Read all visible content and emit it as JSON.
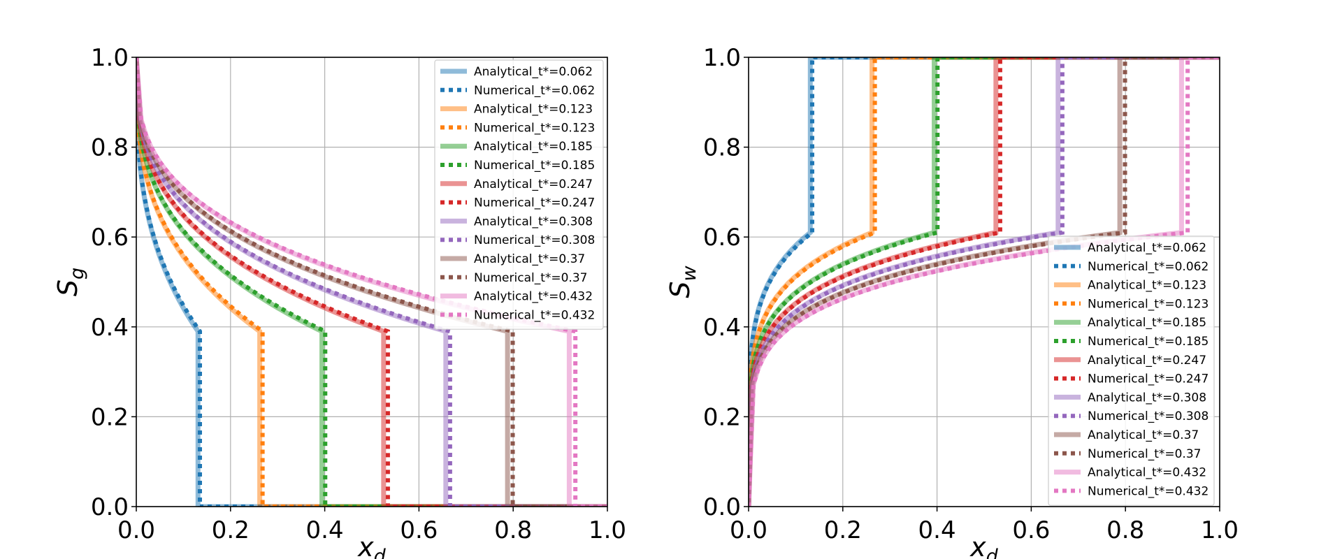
{
  "chart_data": [
    {
      "type": "line",
      "title": "",
      "xlabel_main": "x",
      "xlabel_sub": "d",
      "ylabel_main": "S",
      "ylabel_sub": "g",
      "xlim": [
        0,
        1
      ],
      "ylim": [
        0,
        1
      ],
      "xticks": [
        "0.0",
        "0.2",
        "0.4",
        "0.6",
        "0.8",
        "1.0"
      ],
      "yticks": [
        "0.0",
        "0.2",
        "0.4",
        "0.6",
        "0.8",
        "1.0"
      ],
      "grid": true,
      "legend_position": "top-right",
      "front_height": 0.39,
      "series": [
        {
          "name": "Analytical_t*=0.062",
          "style": "solid",
          "color": "#1f77b4",
          "front": 0.131
        },
        {
          "name": "Numerical_t*=0.062",
          "style": "dotted",
          "color": "#1f77b4",
          "front": 0.135
        },
        {
          "name": "Analytical_t*=0.123",
          "style": "solid",
          "color": "#ff7f0e",
          "front": 0.262
        },
        {
          "name": "Numerical_t*=0.123",
          "style": "dotted",
          "color": "#ff7f0e",
          "front": 0.268
        },
        {
          "name": "Analytical_t*=0.185",
          "style": "solid",
          "color": "#2ca02c",
          "front": 0.394
        },
        {
          "name": "Numerical_t*=0.185",
          "style": "dotted",
          "color": "#2ca02c",
          "front": 0.401
        },
        {
          "name": "Analytical_t*=0.247",
          "style": "solid",
          "color": "#d62728",
          "front": 0.525
        },
        {
          "name": "Numerical_t*=0.247",
          "style": "dotted",
          "color": "#d62728",
          "front": 0.534
        },
        {
          "name": "Analytical_t*=0.308",
          "style": "solid",
          "color": "#9467bd",
          "front": 0.657
        },
        {
          "name": "Numerical_t*=0.308",
          "style": "dotted",
          "color": "#9467bd",
          "front": 0.666
        },
        {
          "name": "Analytical_t*=0.37",
          "style": "solid",
          "color": "#8c564b",
          "front": 0.788
        },
        {
          "name": "Numerical_t*=0.37",
          "style": "dotted",
          "color": "#8c564b",
          "front": 0.799
        },
        {
          "name": "Analytical_t*=0.432",
          "style": "solid",
          "color": "#e377c2",
          "front": 0.919
        },
        {
          "name": "Numerical_t*=0.432",
          "style": "dotted",
          "color": "#e377c2",
          "front": 0.932
        }
      ]
    },
    {
      "type": "line",
      "title": "",
      "xlabel_main": "x",
      "xlabel_sub": "d",
      "ylabel_main": "S",
      "ylabel_sub": "w",
      "xlim": [
        0,
        1
      ],
      "ylim": [
        0,
        1
      ],
      "xticks": [
        "0.0",
        "0.2",
        "0.4",
        "0.6",
        "0.8",
        "1.0"
      ],
      "yticks": [
        "0.0",
        "0.2",
        "0.4",
        "0.6",
        "0.8",
        "1.0"
      ],
      "grid": true,
      "legend_position": "lower-right",
      "front_height": 0.61,
      "series": [
        {
          "name": "Analytical_t*=0.062",
          "style": "solid",
          "color": "#1f77b4",
          "front": 0.131
        },
        {
          "name": "Numerical_t*=0.062",
          "style": "dotted",
          "color": "#1f77b4",
          "front": 0.135
        },
        {
          "name": "Analytical_t*=0.123",
          "style": "solid",
          "color": "#ff7f0e",
          "front": 0.262
        },
        {
          "name": "Numerical_t*=0.123",
          "style": "dotted",
          "color": "#ff7f0e",
          "front": 0.268
        },
        {
          "name": "Analytical_t*=0.185",
          "style": "solid",
          "color": "#2ca02c",
          "front": 0.394
        },
        {
          "name": "Numerical_t*=0.185",
          "style": "dotted",
          "color": "#2ca02c",
          "front": 0.401
        },
        {
          "name": "Analytical_t*=0.247",
          "style": "solid",
          "color": "#d62728",
          "front": 0.525
        },
        {
          "name": "Numerical_t*=0.247",
          "style": "dotted",
          "color": "#d62728",
          "front": 0.534
        },
        {
          "name": "Analytical_t*=0.308",
          "style": "solid",
          "color": "#9467bd",
          "front": 0.657
        },
        {
          "name": "Numerical_t*=0.308",
          "style": "dotted",
          "color": "#9467bd",
          "front": 0.666
        },
        {
          "name": "Analytical_t*=0.37",
          "style": "solid",
          "color": "#8c564b",
          "front": 0.788
        },
        {
          "name": "Numerical_t*=0.37",
          "style": "dotted",
          "color": "#8c564b",
          "front": 0.799
        },
        {
          "name": "Analytical_t*=0.432",
          "style": "solid",
          "color": "#e377c2",
          "front": 0.919
        },
        {
          "name": "Numerical_t*=0.432",
          "style": "dotted",
          "color": "#e377c2",
          "front": 0.932
        }
      ]
    }
  ]
}
